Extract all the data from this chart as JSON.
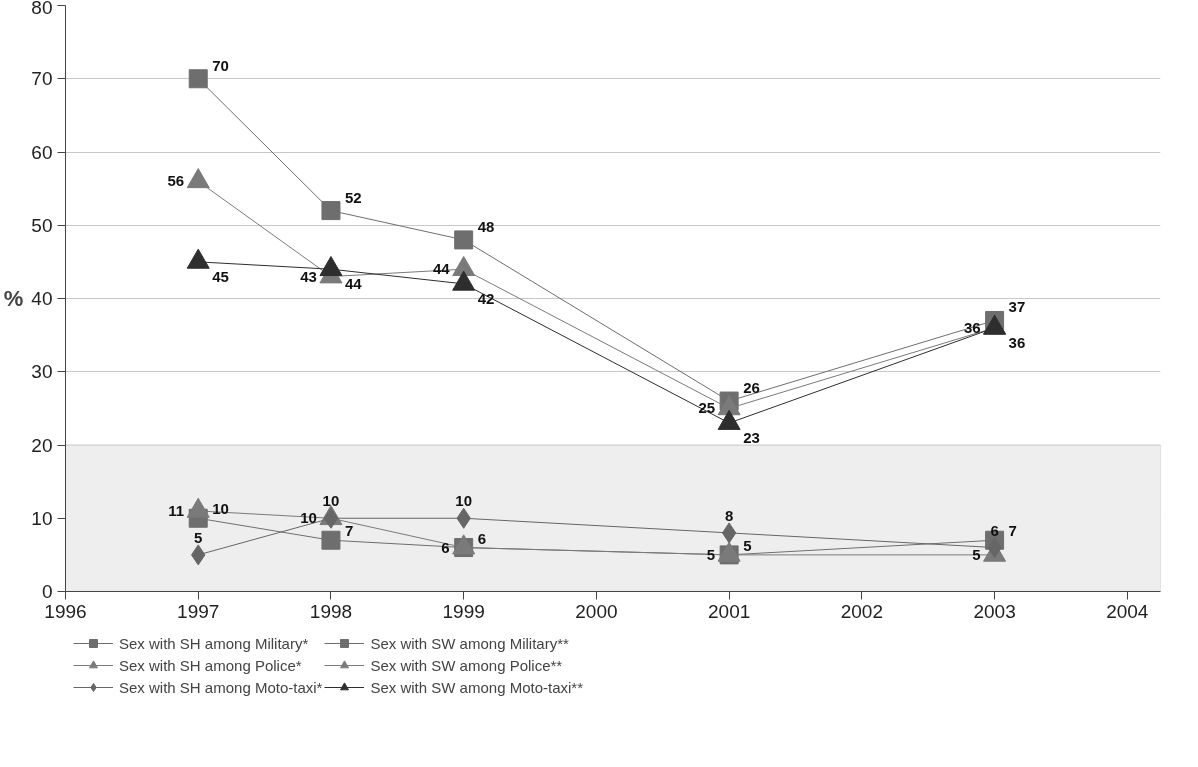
{
  "chart_data": {
    "type": "line",
    "ylabel": "%",
    "x": [
      1997,
      1998,
      1999,
      2001,
      2003
    ],
    "xlim": [
      1996,
      2004.25
    ],
    "xticks": [
      1996,
      1997,
      1998,
      1999,
      2000,
      2001,
      2002,
      2003,
      2004
    ],
    "ylim": [
      0,
      80
    ],
    "yticks": [
      0,
      10,
      20,
      30,
      40,
      50,
      60,
      70,
      80
    ],
    "grid": "y",
    "legend": "bottom",
    "data_labels": true,
    "line_style": "solid",
    "bands": [
      {
        "axis": "y",
        "from": 0,
        "to": 20,
        "color": "#eeeeee"
      }
    ],
    "series": [
      {
        "name": "Sex with SH among Military*",
        "color": "#6e6e6e",
        "marker": "square",
        "values": [
          10,
          7,
          6,
          5,
          7
        ]
      },
      {
        "name": "Sex with SH among Police*",
        "color": "#7a7a7a",
        "marker": "triangle",
        "values": [
          11,
          10,
          6,
          5,
          5
        ]
      },
      {
        "name": "Sex with SH among Moto-taxi*",
        "color": "#666666",
        "marker": "diamond",
        "values": [
          5,
          10,
          10,
          8,
          6
        ]
      },
      {
        "name": "Sex with SW among Military**",
        "color": "#6e6e6e",
        "marker": "square",
        "values": [
          70,
          52,
          48,
          26,
          37
        ]
      },
      {
        "name": "Sex with SW among Police**",
        "color": "#7a7a7a",
        "marker": "triangle",
        "values": [
          56,
          43,
          44,
          25,
          36
        ]
      },
      {
        "name": "Sex with SW among Moto-taxi**",
        "color": "#2e2e2e",
        "marker": "triangle",
        "values": [
          45,
          44,
          42,
          23,
          36
        ]
      }
    ]
  }
}
